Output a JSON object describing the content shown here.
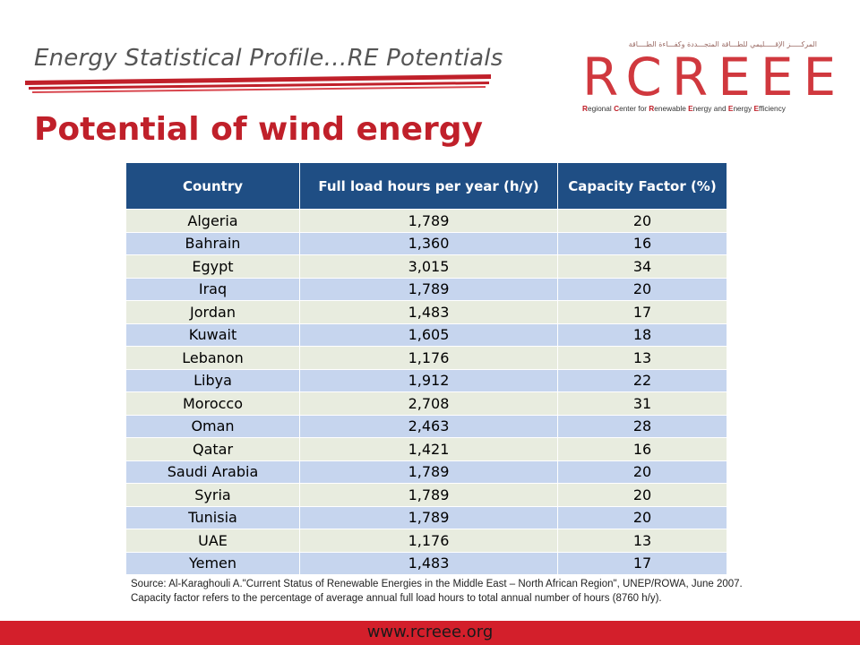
{
  "header": {
    "section_title": "Energy Statistical Profile…RE Potentials",
    "slide_title": "Potential of wind energy"
  },
  "logo": {
    "arabic_text": "المركـــــز الإقـــــليمي للطـــاقة المتجـــددة وكفـــاءة الطــــاقة",
    "wordmark": "RCREEE",
    "tagline_parts": [
      "R",
      "egional ",
      "C",
      "enter for ",
      "R",
      "enewable ",
      "E",
      "nergy and ",
      "E",
      "nergy ",
      "E",
      "fficiency"
    ]
  },
  "table": {
    "headers": [
      "Country",
      "Full load hours per year (h/y)",
      "Capacity Factor (%)"
    ],
    "rows": [
      [
        "Algeria",
        "1,789",
        "20"
      ],
      [
        "Bahrain",
        "1,360",
        "16"
      ],
      [
        "Egypt",
        "3,015",
        "34"
      ],
      [
        "Iraq",
        "1,789",
        "20"
      ],
      [
        "Jordan",
        "1,483",
        "17"
      ],
      [
        "Kuwait",
        "1,605",
        "18"
      ],
      [
        "Lebanon",
        "1,176",
        "13"
      ],
      [
        "Libya",
        "1,912",
        "22"
      ],
      [
        "Morocco",
        "2,708",
        "31"
      ],
      [
        "Oman",
        "2,463",
        "28"
      ],
      [
        "Qatar",
        "1,421",
        "16"
      ],
      [
        "Saudi Arabia",
        "1,789",
        "20"
      ],
      [
        "Syria",
        "1,789",
        "20"
      ],
      [
        "Tunisia",
        "1,789",
        "20"
      ],
      [
        "UAE",
        "1,176",
        "13"
      ],
      [
        "Yemen",
        "1,483",
        "17"
      ]
    ]
  },
  "source_note": "Source: Al-Karaghouli A.\"Current Status of Renewable Energies in the Middle East – North African Region\", UNEP/ROWA, June 2007.  Capacity factor refers to the percentage of average annual  full load hours to total annual number of hours (8760 h/y).",
  "footer": {
    "url": "www.rcreee.org"
  },
  "colors": {
    "accent_red": "#c0202a",
    "header_blue": "#1f4e84",
    "row_light": "#e8ecdf",
    "row_blue": "#c6d5ee"
  }
}
